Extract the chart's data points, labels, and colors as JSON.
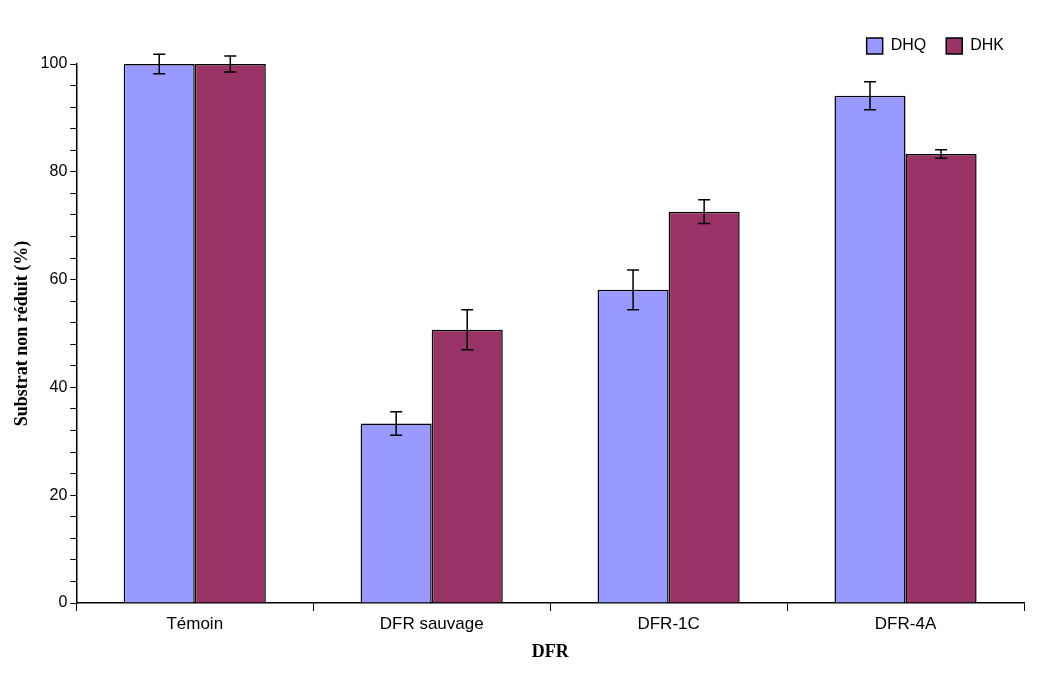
{
  "chart_data": {
    "type": "bar",
    "xlabel": "DFR",
    "ylabel": "Substrat non réduit (%)",
    "categories": [
      "Témoin",
      "DFR sauvage",
      "DFR-1C",
      "DFR-4A"
    ],
    "series": [
      {
        "name": "DHQ",
        "color": "#9999ff",
        "values": [
          100,
          33.3,
          58.1,
          94.1
        ],
        "errors": [
          1.8,
          2.2,
          3.7,
          2.6
        ]
      },
      {
        "name": "DHK",
        "color": "#993366",
        "values": [
          100,
          50.7,
          72.6,
          83.3
        ],
        "errors": [
          1.5,
          3.7,
          2.2,
          0.8
        ]
      }
    ],
    "ylim": [
      0,
      100
    ],
    "yticks": [
      0,
      {
        "value": 4,
        "label": null
      },
      {
        "value": 8,
        "label": null
      },
      {
        "value": 12,
        "label": null
      },
      {
        "value": 16,
        "label": null
      },
      20,
      {
        "value": 24,
        "label": null
      },
      {
        "value": 28,
        "label": null
      },
      {
        "value": 32,
        "label": null
      },
      {
        "value": 36,
        "label": null
      },
      40,
      {
        "value": 44,
        "label": null
      },
      {
        "value": 48,
        "label": null
      },
      {
        "value": 52,
        "label": null
      },
      {
        "value": 56,
        "label": null
      },
      60,
      {
        "value": 64,
        "label": null
      },
      {
        "value": 68,
        "label": null
      },
      {
        "value": 72,
        "label": null
      },
      {
        "value": 76,
        "label": null
      },
      80,
      {
        "value": 84,
        "label": null
      },
      {
        "value": 88,
        "label": null
      },
      {
        "value": 92,
        "label": null
      },
      {
        "value": 96,
        "label": null
      },
      100
    ],
    "grid": false,
    "legend": "top right"
  }
}
